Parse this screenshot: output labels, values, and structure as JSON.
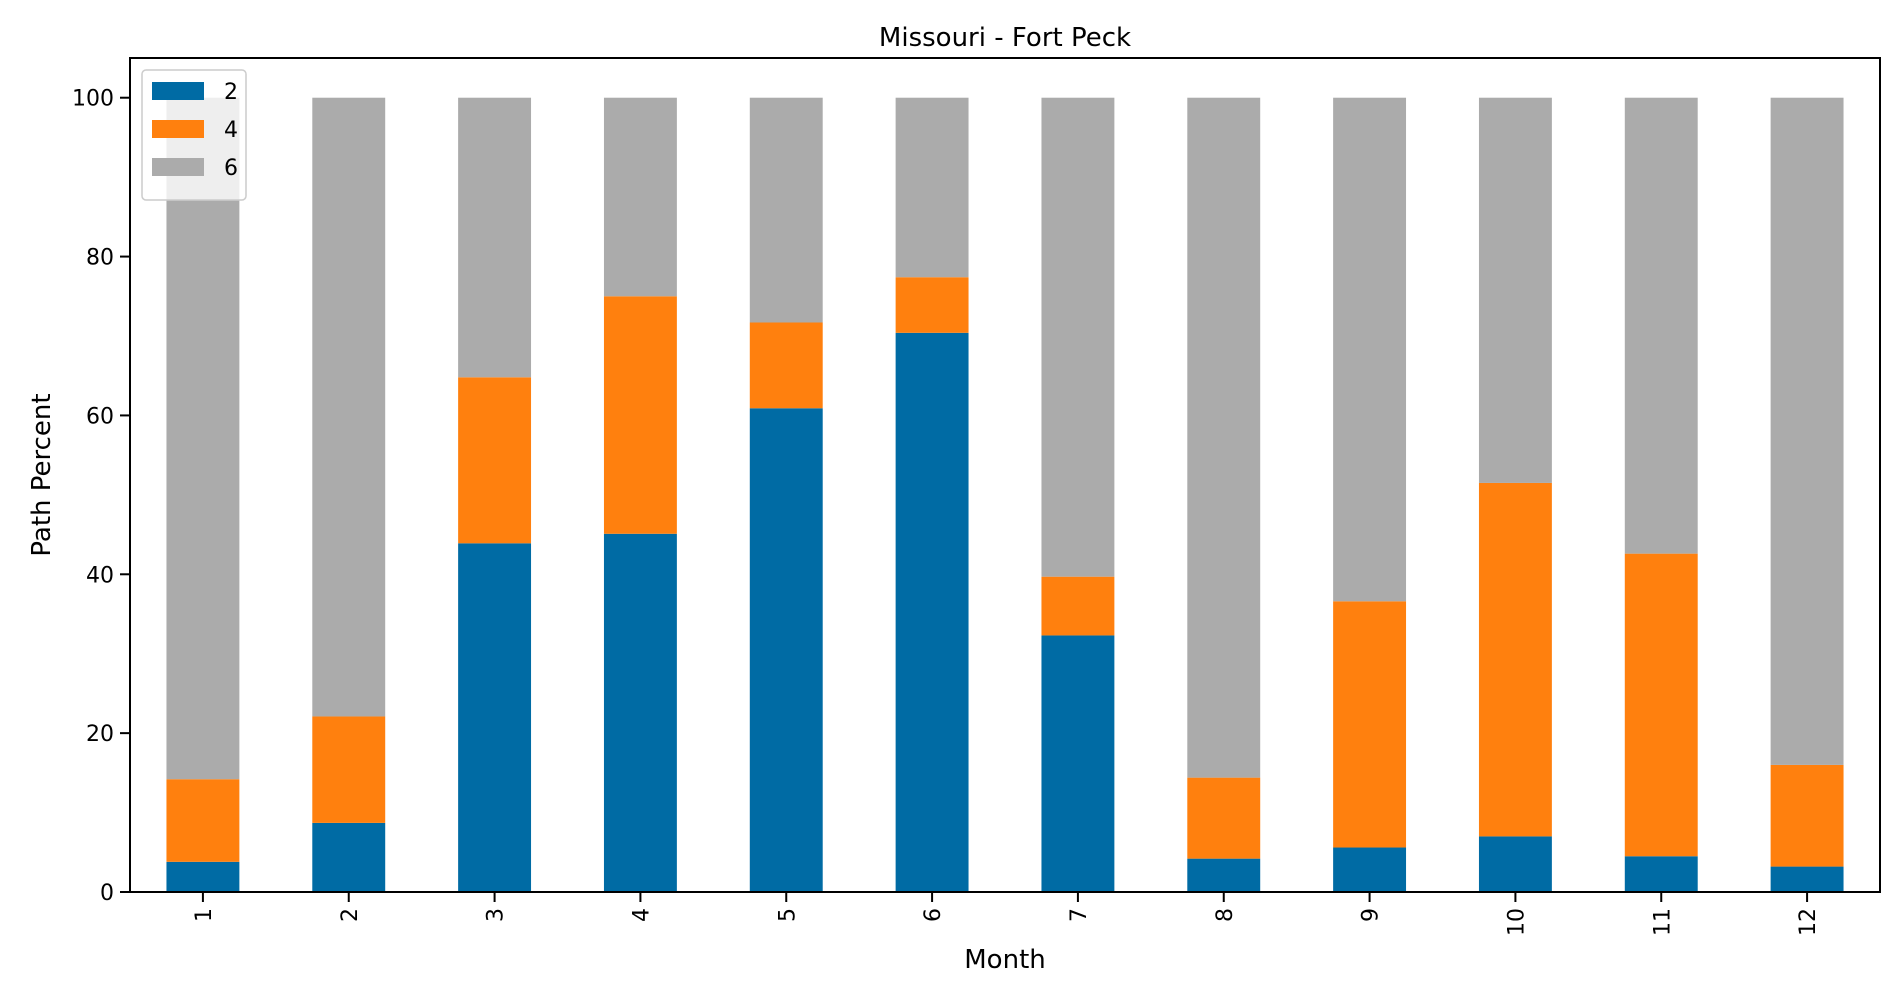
{
  "chart_data": {
    "type": "bar",
    "stacked": true,
    "title": "Missouri - Fort Peck",
    "xlabel": "Month",
    "ylabel": "Path Percent",
    "ylim": [
      0,
      105
    ],
    "yticks": [
      0,
      20,
      40,
      60,
      80,
      100
    ],
    "categories": [
      "1",
      "2",
      "3",
      "4",
      "5",
      "6",
      "7",
      "8",
      "9",
      "10",
      "11",
      "12"
    ],
    "series": [
      {
        "name": "2",
        "color": "#006ba4",
        "values": [
          3.8,
          8.7,
          43.9,
          45.1,
          60.9,
          70.4,
          32.3,
          4.2,
          5.6,
          7.0,
          4.5,
          3.2
        ]
      },
      {
        "name": "4",
        "color": "#ff800e",
        "values": [
          10.4,
          13.4,
          20.9,
          29.9,
          10.8,
          7.0,
          7.4,
          10.2,
          31.0,
          44.5,
          38.1,
          12.8
        ]
      },
      {
        "name": "6",
        "color": "#ababab",
        "values": [
          85.8,
          77.9,
          35.2,
          25.0,
          28.3,
          22.6,
          60.3,
          85.6,
          63.4,
          48.5,
          57.4,
          84.0
        ]
      }
    ],
    "legend_position": "top-left",
    "grid": false
  }
}
